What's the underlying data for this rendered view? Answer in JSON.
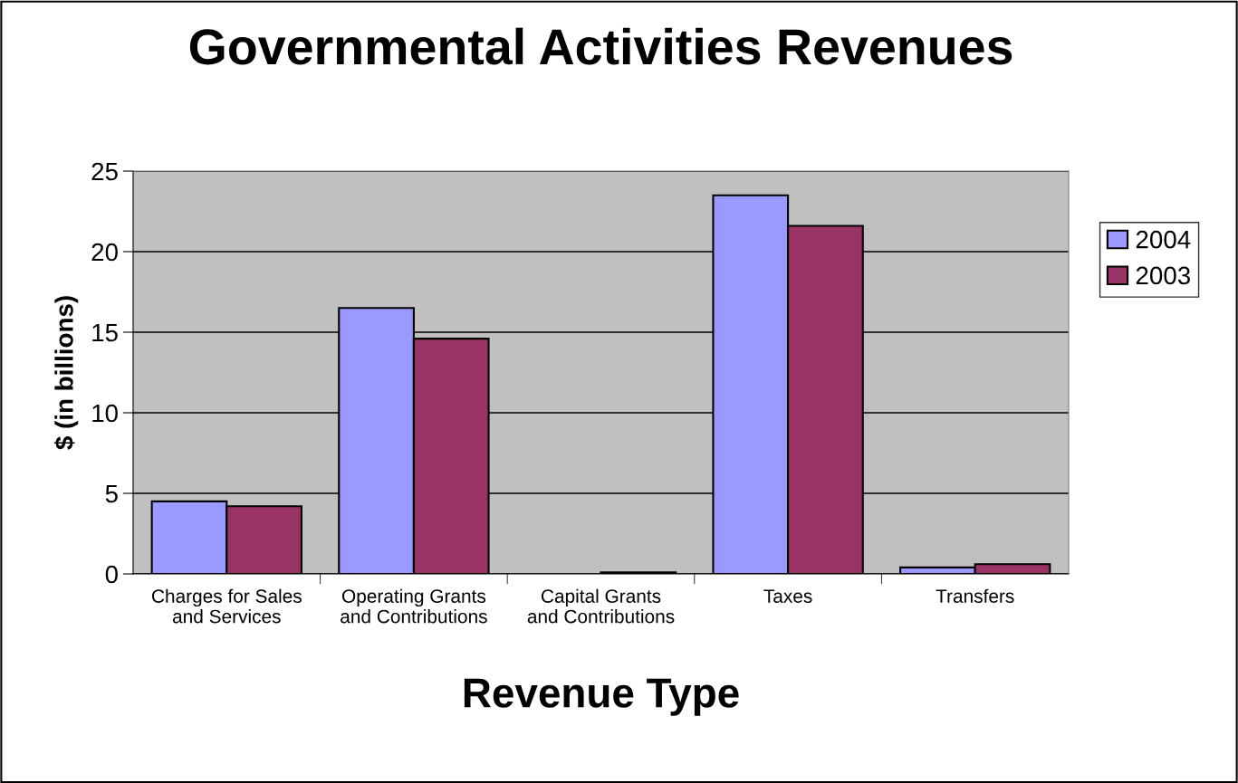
{
  "chart_data": {
    "type": "bar",
    "title": "Governmental Activities Revenues",
    "xlabel": "Revenue Type",
    "ylabel": "$ (in billions)",
    "categories": [
      "Charges for Sales\nand Services",
      "Operating Grants\nand Contributions",
      "Capital Grants\nand Contributions",
      "Taxes",
      "Transfers"
    ],
    "series": [
      {
        "name": "2004",
        "color": "#9999ff",
        "values": [
          4.5,
          16.5,
          null,
          23.5,
          0.4
        ]
      },
      {
        "name": "2003",
        "color": "#993366",
        "values": [
          4.2,
          14.6,
          0.1,
          21.6,
          0.6
        ]
      }
    ],
    "ylim": [
      0,
      25
    ],
    "yticks": [
      0,
      5,
      10,
      15,
      20,
      25
    ],
    "grid": "y",
    "legend": "right"
  }
}
